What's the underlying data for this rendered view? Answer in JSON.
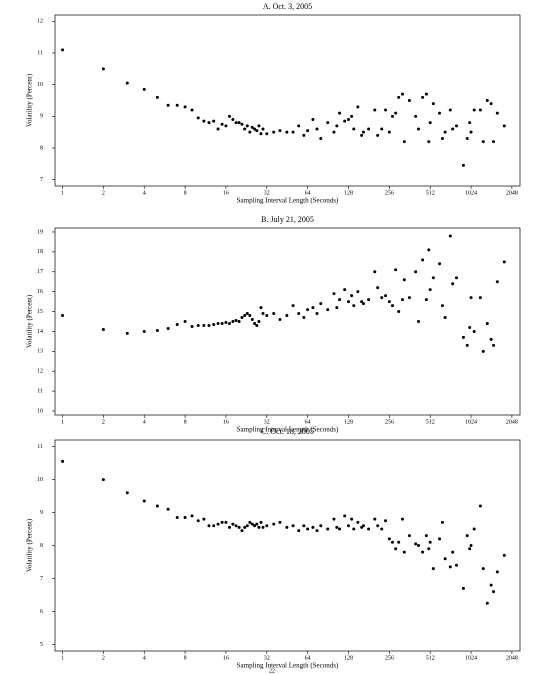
{
  "chart_data": [
    {
      "type": "scatter",
      "title": "A. Oct. 3, 2005",
      "x_label": "Sampling Interval Length (Seconds)",
      "y_label": "Volatility (Percent)",
      "xscale": "log",
      "color": "#000000",
      "xlim": [
        0.88,
        2350
      ],
      "xticks": [
        1,
        2,
        4,
        8,
        16,
        32,
        64,
        128,
        256,
        512,
        1024,
        2048
      ],
      "ylim": [
        6.8,
        12.2
      ],
      "yticks": [
        7,
        8,
        9,
        10,
        11,
        12
      ],
      "x": [
        1,
        2,
        3,
        4,
        5,
        6,
        7,
        8,
        9,
        10,
        11,
        12,
        13,
        14,
        15,
        16,
        17,
        18,
        19,
        20,
        21,
        22,
        23,
        24,
        25,
        26,
        27,
        28,
        29,
        30,
        32,
        36,
        40,
        45,
        50,
        55,
        60,
        64,
        70,
        75,
        80,
        90,
        100,
        105,
        110,
        120,
        128,
        135,
        140,
        150,
        160,
        165,
        180,
        200,
        210,
        225,
        240,
        256,
        270,
        285,
        300,
        320,
        330,
        360,
        400,
        420,
        450,
        480,
        500,
        512,
        540,
        600,
        630,
        660,
        720,
        750,
        800,
        900,
        960,
        1000,
        1024,
        1080,
        1200,
        1260,
        1350,
        1440,
        1500,
        1600,
        1800
      ],
      "values": [
        11.1,
        10.5,
        10.05,
        9.85,
        9.6,
        9.35,
        9.35,
        9.3,
        9.2,
        8.95,
        8.85,
        8.8,
        8.85,
        8.6,
        8.75,
        8.7,
        9.0,
        8.9,
        8.8,
        8.8,
        8.75,
        8.6,
        8.7,
        8.5,
        8.65,
        8.6,
        8.55,
        8.7,
        8.45,
        8.6,
        8.45,
        8.5,
        8.55,
        8.5,
        8.5,
        8.7,
        8.4,
        8.55,
        8.9,
        8.6,
        8.3,
        8.8,
        8.5,
        8.7,
        9.1,
        8.85,
        8.9,
        9.0,
        8.6,
        9.3,
        8.4,
        8.5,
        8.6,
        9.2,
        8.4,
        8.6,
        9.2,
        8.5,
        9.0,
        9.1,
        9.6,
        9.7,
        8.2,
        9.5,
        9.0,
        8.6,
        9.6,
        9.7,
        8.2,
        8.8,
        9.4,
        9.1,
        8.3,
        8.5,
        9.2,
        8.6,
        8.7,
        7.45,
        8.3,
        8.8,
        8.5,
        9.2,
        9.2,
        8.2,
        9.5,
        9.4,
        8.2,
        9.1,
        8.7
      ]
    },
    {
      "type": "scatter",
      "title": "B. July 21, 2005",
      "x_label": "Sampling Interval Length (Seconds)",
      "y_label": "Volatility (Percent)",
      "xscale": "log",
      "color": "#000000",
      "xlim": [
        0.88,
        2350
      ],
      "xticks": [
        1,
        2,
        4,
        8,
        16,
        32,
        64,
        128,
        256,
        512,
        1024,
        2048
      ],
      "ylim": [
        9.8,
        19.2
      ],
      "yticks": [
        10,
        11,
        12,
        13,
        14,
        15,
        16,
        17,
        18,
        19
      ],
      "x": [
        1,
        2,
        3,
        4,
        5,
        6,
        7,
        8,
        9,
        10,
        11,
        12,
        13,
        14,
        15,
        16,
        17,
        18,
        19,
        20,
        21,
        22,
        23,
        24,
        25,
        26,
        27,
        28,
        29,
        30,
        32,
        36,
        40,
        45,
        50,
        55,
        60,
        64,
        70,
        75,
        80,
        90,
        100,
        105,
        110,
        120,
        128,
        135,
        140,
        150,
        160,
        165,
        180,
        200,
        210,
        225,
        240,
        256,
        270,
        285,
        300,
        320,
        330,
        360,
        400,
        420,
        450,
        480,
        500,
        512,
        540,
        600,
        630,
        660,
        720,
        750,
        800,
        900,
        960,
        1000,
        1024,
        1080,
        1200,
        1260,
        1350,
        1440,
        1500,
        1600,
        1800
      ],
      "values": [
        14.8,
        14.1,
        13.9,
        14.0,
        14.05,
        14.15,
        14.35,
        14.5,
        14.25,
        14.3,
        14.3,
        14.3,
        14.35,
        14.4,
        14.4,
        14.45,
        14.4,
        14.5,
        14.55,
        14.5,
        14.7,
        14.8,
        14.9,
        14.8,
        14.6,
        14.4,
        14.3,
        14.5,
        15.2,
        14.9,
        14.8,
        14.9,
        14.6,
        14.8,
        15.3,
        14.9,
        14.7,
        15.1,
        15.2,
        14.9,
        15.4,
        15.1,
        15.9,
        15.2,
        15.6,
        16.1,
        15.5,
        15.8,
        15.3,
        16.0,
        15.5,
        15.4,
        15.6,
        17.0,
        16.2,
        15.7,
        15.8,
        15.5,
        15.3,
        17.1,
        15.0,
        15.6,
        16.6,
        15.7,
        17.0,
        14.5,
        17.6,
        15.6,
        18.1,
        16.1,
        16.7,
        17.4,
        15.3,
        14.7,
        18.8,
        16.4,
        16.7,
        13.7,
        13.3,
        14.2,
        15.7,
        14.0,
        15.7,
        13.0,
        14.4,
        13.6,
        13.3,
        16.5,
        17.5
      ]
    },
    {
      "type": "scatter",
      "title": "C. Oct. 18, 2005",
      "x_label": "Sampling Interval Length (Seconds)",
      "y_label": "Volatility (Percent)",
      "xscale": "log",
      "color": "#000000",
      "xlim": [
        0.88,
        2350
      ],
      "xticks": [
        1,
        2,
        4,
        8,
        16,
        32,
        64,
        128,
        256,
        512,
        1024,
        2048
      ],
      "ylim": [
        4.8,
        11.2
      ],
      "yticks": [
        5,
        6,
        7,
        8,
        9,
        10,
        11
      ],
      "x": [
        1,
        2,
        3,
        4,
        5,
        6,
        7,
        8,
        9,
        10,
        11,
        12,
        13,
        14,
        15,
        16,
        17,
        18,
        19,
        20,
        21,
        22,
        23,
        24,
        25,
        26,
        27,
        28,
        29,
        30,
        32,
        36,
        40,
        45,
        50,
        55,
        60,
        64,
        70,
        75,
        80,
        90,
        100,
        105,
        110,
        120,
        128,
        135,
        140,
        150,
        160,
        165,
        180,
        200,
        210,
        225,
        240,
        256,
        270,
        285,
        300,
        320,
        330,
        360,
        400,
        420,
        450,
        480,
        500,
        512,
        540,
        600,
        630,
        660,
        720,
        750,
        800,
        900,
        960,
        1000,
        1024,
        1080,
        1200,
        1260,
        1350,
        1440,
        1500,
        1600,
        1800
      ],
      "values": [
        10.55,
        10.0,
        9.6,
        9.35,
        9.2,
        9.1,
        8.85,
        8.85,
        8.9,
        8.75,
        8.8,
        8.6,
        8.6,
        8.65,
        8.7,
        8.7,
        8.55,
        8.65,
        8.6,
        8.55,
        8.45,
        8.55,
        8.6,
        8.7,
        8.65,
        8.6,
        8.65,
        8.55,
        8.7,
        8.55,
        8.6,
        8.65,
        8.7,
        8.55,
        8.6,
        8.45,
        8.6,
        8.5,
        8.55,
        8.45,
        8.6,
        8.5,
        8.8,
        8.55,
        8.5,
        8.9,
        8.6,
        8.8,
        8.5,
        8.7,
        8.55,
        8.6,
        8.5,
        8.8,
        8.6,
        8.5,
        8.75,
        8.2,
        8.1,
        7.9,
        8.1,
        8.8,
        7.8,
        8.3,
        8.05,
        8.0,
        7.8,
        8.3,
        7.9,
        8.1,
        7.3,
        8.2,
        8.7,
        7.6,
        7.35,
        7.8,
        7.4,
        6.7,
        8.3,
        7.9,
        8.0,
        8.5,
        9.2,
        7.3,
        6.25,
        6.8,
        6.6,
        7.2,
        7.7
      ]
    }
  ],
  "page_number": "22"
}
